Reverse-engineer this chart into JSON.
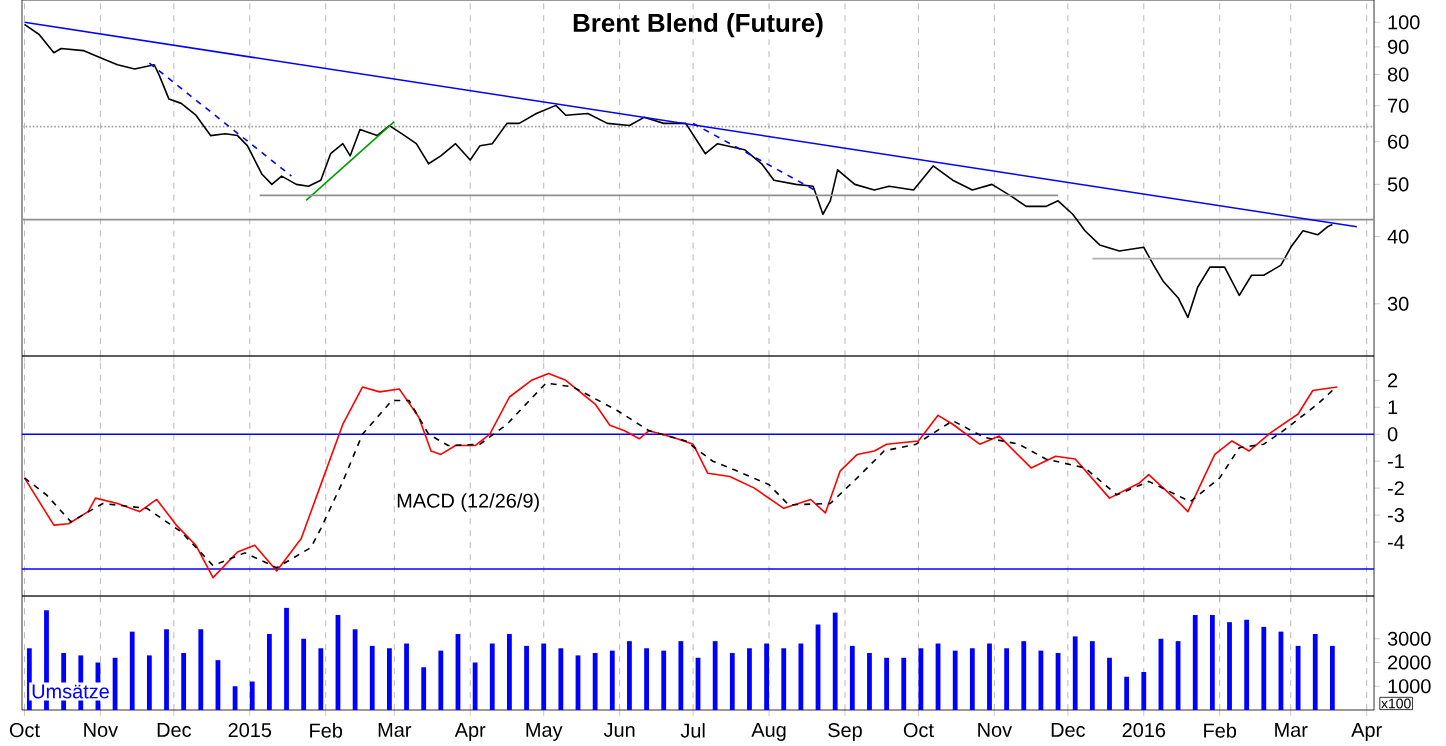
{
  "chart_data": [
    {
      "type": "line",
      "title": "Brent Blend (Future)",
      "log": "y",
      "grid": "x",
      "tick_labels": "y",
      "marker": "none",
      "xlim": [
        "2014-09-30",
        "2016-04-04"
      ],
      "xticks": [
        {
          "value": "2014-10-01",
          "label": null
        },
        {
          "value": "2014-11-01",
          "label": null
        },
        {
          "value": "2014-12-01",
          "label": null
        },
        {
          "value": "2015-01-01",
          "label": null
        },
        {
          "value": "2015-02-01",
          "label": null
        },
        {
          "value": "2015-03-01",
          "label": null
        },
        {
          "value": "2015-04-01",
          "label": null
        },
        {
          "value": "2015-05-01",
          "label": null
        },
        {
          "value": "2015-06-01",
          "label": null
        },
        {
          "value": "2015-07-01",
          "label": null
        },
        {
          "value": "2015-08-01",
          "label": null
        },
        {
          "value": "2015-09-01",
          "label": null
        },
        {
          "value": "2015-10-01",
          "label": null
        },
        {
          "value": "2015-11-01",
          "label": null
        },
        {
          "value": "2015-12-01",
          "label": null
        },
        {
          "value": "2016-01-01",
          "label": null
        },
        {
          "value": "2016-02-01",
          "label": null
        },
        {
          "value": "2016-03-01",
          "label": null
        },
        {
          "value": "2016-04-01",
          "label": null
        }
      ],
      "ylim": [
        24,
        110
      ],
      "yticks": [
        30,
        40,
        50,
        60,
        70,
        80,
        90,
        100
      ],
      "ref_lines": [
        {
          "axis": "y",
          "value": 64,
          "color": "#a0a0a0",
          "line_style": "dotted"
        },
        {
          "axis": "y",
          "value": 43,
          "color": "#909090",
          "line_style": "solid"
        }
      ],
      "series": [
        {
          "type": "line",
          "color": "#000000",
          "line_style": "solid",
          "x": [
            "2014-10-01",
            "2014-10-07",
            "2014-10-13",
            "2014-10-16",
            "2014-10-25",
            "2014-11-02",
            "2014-11-08",
            "2014-11-15",
            "2014-11-23",
            "2014-11-25",
            "2014-11-29",
            "2014-12-04",
            "2014-12-10",
            "2014-12-16",
            "2014-12-22",
            "2014-12-27",
            "2014-12-31",
            "2015-01-06",
            "2015-01-10",
            "2015-01-14",
            "2015-01-20",
            "2015-01-25",
            "2015-01-30",
            "2015-02-03",
            "2015-02-08",
            "2015-02-11",
            "2015-02-15",
            "2015-02-22",
            "2015-02-27",
            "2015-03-04",
            "2015-03-10",
            "2015-03-15",
            "2015-03-20",
            "2015-03-26",
            "2015-04-01",
            "2015-04-05",
            "2015-04-10",
            "2015-04-16",
            "2015-04-21",
            "2015-04-28",
            "2015-05-06",
            "2015-05-10",
            "2015-05-19",
            "2015-05-27",
            "2015-06-05",
            "2015-06-11",
            "2015-06-19",
            "2015-06-28",
            "2015-07-06",
            "2015-07-11",
            "2015-07-22",
            "2015-07-29",
            "2015-08-03",
            "2015-08-12",
            "2015-08-19",
            "2015-08-23",
            "2015-08-26",
            "2015-08-29",
            "2015-09-05",
            "2015-09-13",
            "2015-09-19",
            "2015-09-29",
            "2015-10-07",
            "2015-10-15",
            "2015-10-23",
            "2015-10-31",
            "2015-11-08",
            "2015-11-14",
            "2015-11-22",
            "2015-11-27",
            "2015-12-03",
            "2015-12-08",
            "2015-12-14",
            "2015-12-22",
            "2016-01-01",
            "2016-01-05",
            "2016-01-09",
            "2016-01-15",
            "2016-01-19",
            "2016-01-23",
            "2016-01-28",
            "2016-02-03",
            "2016-02-09",
            "2016-02-14",
            "2016-02-19",
            "2016-02-26",
            "2016-03-01",
            "2016-03-06",
            "2016-03-12",
            "2016-03-16",
            "2016-03-18"
          ],
          "values": [
            99.1,
            94.9,
            87.8,
            89.4,
            88.6,
            85.6,
            83.4,
            81.9,
            83.4,
            79.8,
            72.0,
            70.7,
            67.2,
            61.6,
            62.1,
            61.6,
            59.0,
            52.2,
            50.0,
            51.8,
            50.0,
            49.6,
            50.9,
            57.0,
            59.5,
            56.5,
            63.2,
            61.6,
            64.3,
            62.1,
            59.5,
            54.6,
            56.5,
            59.5,
            55.5,
            59.0,
            59.5,
            64.9,
            64.9,
            67.7,
            70.1,
            67.2,
            67.7,
            64.9,
            64.3,
            66.6,
            64.9,
            64.9,
            57.0,
            59.5,
            58.0,
            54.6,
            50.9,
            50.0,
            49.6,
            44.0,
            46.6,
            53.2,
            50.0,
            48.8,
            49.6,
            48.8,
            54.1,
            50.9,
            48.8,
            50.0,
            47.5,
            45.5,
            45.5,
            46.6,
            44.0,
            41.0,
            38.6,
            37.6,
            38.2,
            35.4,
            33.0,
            30.8,
            28.3,
            32.2,
            35.1,
            35.1,
            31.1,
            33.9,
            33.9,
            35.4,
            38.2,
            41.0,
            40.3,
            41.7,
            42.1
          ]
        },
        {
          "type": "line",
          "color": "#0000ff",
          "line_style": "solid",
          "x": [
            "2014-10-01",
            "2016-03-28"
          ],
          "values": [
            100,
            41.7
          ]
        },
        {
          "type": "line",
          "color": "#00a000",
          "line_style": "solid",
          "x": [
            "2015-01-24",
            "2015-03-01"
          ],
          "values": [
            46.7,
            65.4
          ]
        },
        {
          "type": "line",
          "color": "#0000ff",
          "line_style": "dashed",
          "x": [
            "2014-11-21",
            "2015-01-18"
          ],
          "values": [
            84,
            51.8
          ]
        },
        {
          "type": "line",
          "color": "#0000ff",
          "line_style": "dashed",
          "x": [
            "2015-07-01",
            "2015-08-20"
          ],
          "values": [
            64.9,
            48.7
          ]
        },
        {
          "type": "line",
          "color": "#909090",
          "line_style": "solid",
          "x": [
            "2015-01-05",
            "2015-11-27"
          ],
          "values": [
            47.7,
            47.7
          ]
        },
        {
          "type": "line",
          "color": "#b0b0b0",
          "line_style": "solid",
          "x": [
            "2015-12-11",
            "2016-02-29"
          ],
          "values": [
            36.4,
            36.4
          ]
        }
      ]
    },
    {
      "type": "line",
      "grid": "x",
      "tick_labels": "y",
      "marker": "none",
      "annotations": [
        "MACD (12/26/9)"
      ],
      "xlim": [
        "2014-09-30",
        "2016-04-04"
      ],
      "xticks": [
        {
          "value": "2014-10-01",
          "label": null
        },
        {
          "value": "2014-11-01",
          "label": null
        },
        {
          "value": "2014-12-01",
          "label": null
        },
        {
          "value": "2015-01-01",
          "label": null
        },
        {
          "value": "2015-02-01",
          "label": null
        },
        {
          "value": "2015-03-01",
          "label": null
        },
        {
          "value": "2015-04-01",
          "label": null
        },
        {
          "value": "2015-05-01",
          "label": null
        },
        {
          "value": "2015-06-01",
          "label": null
        },
        {
          "value": "2015-07-01",
          "label": null
        },
        {
          "value": "2015-08-01",
          "label": null
        },
        {
          "value": "2015-09-01",
          "label": null
        },
        {
          "value": "2015-10-01",
          "label": null
        },
        {
          "value": "2015-11-01",
          "label": null
        },
        {
          "value": "2015-12-01",
          "label": null
        },
        {
          "value": "2016-01-01",
          "label": null
        },
        {
          "value": "2016-02-01",
          "label": null
        },
        {
          "value": "2016-03-01",
          "label": null
        },
        {
          "value": "2016-04-01",
          "label": null
        }
      ],
      "ylim": [
        -6,
        2.9
      ],
      "yticks": [
        -4,
        -3,
        -2,
        -1,
        0,
        1,
        2
      ],
      "ref_lines": [
        {
          "axis": "y",
          "value": 0,
          "color": "#0000ff",
          "line_style": "solid"
        },
        {
          "axis": "y",
          "value": -5,
          "color": "#0000ff",
          "line_style": "solid"
        }
      ],
      "series": [
        {
          "type": "line",
          "color": "#ff0000",
          "line_style": "solid",
          "x": [
            "2014-10-01",
            "2014-10-13",
            "2014-10-19",
            "2014-10-27",
            "2014-10-30",
            "2014-11-08",
            "2014-11-17",
            "2014-11-24",
            "2014-12-02",
            "2014-12-10",
            "2014-12-17",
            "2014-12-27",
            "2015-01-03",
            "2015-01-12",
            "2015-01-22",
            "2015-01-30",
            "2015-02-08",
            "2015-02-16",
            "2015-02-23",
            "2015-03-03",
            "2015-03-11",
            "2015-03-16",
            "2015-03-20",
            "2015-03-26",
            "2015-04-03",
            "2015-04-09",
            "2015-04-17",
            "2015-04-26",
            "2015-05-03",
            "2015-05-10",
            "2015-05-22",
            "2015-05-28",
            "2015-06-03",
            "2015-06-09",
            "2015-06-13",
            "2015-06-23",
            "2015-07-01",
            "2015-07-07",
            "2015-07-16",
            "2015-07-26",
            "2015-08-07",
            "2015-08-18",
            "2015-08-24",
            "2015-08-30",
            "2015-09-06",
            "2015-09-13",
            "2015-09-18",
            "2015-10-01",
            "2015-10-09",
            "2015-10-15",
            "2015-10-26",
            "2015-11-03",
            "2015-11-16",
            "2015-11-26",
            "2015-12-04",
            "2015-12-18",
            "2015-12-30",
            "2016-01-03",
            "2016-01-15",
            "2016-01-19",
            "2016-01-30",
            "2016-02-06",
            "2016-02-13",
            "2016-02-22",
            "2016-03-04",
            "2016-03-10",
            "2016-03-20"
          ],
          "values": [
            -1.62,
            -3.37,
            -3.32,
            -2.87,
            -2.37,
            -2.57,
            -2.87,
            -2.42,
            -3.37,
            -4.12,
            -5.32,
            -4.37,
            -4.12,
            -5.07,
            -3.87,
            -1.87,
            0.37,
            1.75,
            1.57,
            1.68,
            0.63,
            -0.62,
            -0.75,
            -0.42,
            -0.42,
            0,
            1.38,
            2.0,
            2.25,
            2.0,
            1.12,
            0.33,
            0.13,
            -0.17,
            0.13,
            -0.12,
            -0.37,
            -1.45,
            -1.57,
            -2.0,
            -2.75,
            -2.42,
            -2.92,
            -1.37,
            -0.75,
            -0.62,
            -0.37,
            -0.25,
            0.7,
            0.37,
            -0.37,
            -0.07,
            -1.25,
            -0.82,
            -0.92,
            -2.37,
            -1.82,
            -1.5,
            -2.5,
            -2.87,
            -0.75,
            -0.25,
            -0.62,
            0.07,
            0.75,
            1.62,
            1.75
          ]
        },
        {
          "type": "line",
          "color": "#000000",
          "line_style": "dashed",
          "x": [
            "2014-10-01",
            "2014-10-10",
            "2014-10-20",
            "2014-11-02",
            "2014-11-20",
            "2014-12-04",
            "2014-12-17",
            "2014-12-30",
            "2015-01-12",
            "2015-01-26",
            "2015-01-30",
            "2015-02-08",
            "2015-02-16",
            "2015-02-28",
            "2015-03-07",
            "2015-03-15",
            "2015-03-23",
            "2015-04-05",
            "2015-04-16",
            "2015-05-02",
            "2015-05-13",
            "2015-05-31",
            "2015-06-13",
            "2015-06-28",
            "2015-07-09",
            "2015-07-16",
            "2015-08-01",
            "2015-08-09",
            "2015-08-26",
            "2015-09-06",
            "2015-09-17",
            "2015-09-30",
            "2015-10-15",
            "2015-10-28",
            "2015-11-11",
            "2015-11-22",
            "2015-12-08",
            "2015-12-21",
            "2016-01-03",
            "2016-01-20",
            "2016-02-01",
            "2016-02-09",
            "2016-02-19",
            "2016-02-27",
            "2016-03-12",
            "2016-03-18"
          ],
          "values": [
            -1.62,
            -2.25,
            -3.25,
            -2.57,
            -2.75,
            -3.62,
            -4.87,
            -4.4,
            -4.95,
            -4.2,
            -3.5,
            -1.75,
            0,
            1.25,
            1.25,
            0,
            -0.42,
            -0.37,
            0.37,
            1.9,
            1.75,
            0.88,
            0.13,
            -0.25,
            -1.0,
            -1.25,
            -1.87,
            -2.62,
            -2.57,
            -1.62,
            -0.62,
            -0.37,
            0.5,
            -0.12,
            -0.37,
            -0.92,
            -1.25,
            -2.25,
            -1.75,
            -2.5,
            -1.62,
            -0.5,
            -0.37,
            0.13,
            1.12,
            1.62
          ]
        }
      ]
    },
    {
      "type": "bar",
      "grid": "x",
      "color": "#0000ff",
      "annotations": [
        "Umsätze",
        "x100"
      ],
      "xlim": [
        "2014-09-30",
        "2016-04-04"
      ],
      "xticks": [
        {
          "value": "2014-10-01",
          "label": "Oct"
        },
        {
          "value": "2014-11-01",
          "label": "Nov"
        },
        {
          "value": "2014-12-01",
          "label": "Dec"
        },
        {
          "value": "2015-01-01",
          "label": "2015"
        },
        {
          "value": "2015-02-01",
          "label": "Feb"
        },
        {
          "value": "2015-03-01",
          "label": "Mar"
        },
        {
          "value": "2015-04-01",
          "label": "Apr"
        },
        {
          "value": "2015-05-01",
          "label": "May"
        },
        {
          "value": "2015-06-01",
          "label": "Jun"
        },
        {
          "value": "2015-07-01",
          "label": "Jul"
        },
        {
          "value": "2015-08-01",
          "label": "Aug"
        },
        {
          "value": "2015-09-01",
          "label": "Sep"
        },
        {
          "value": "2015-10-01",
          "label": "Oct"
        },
        {
          "value": "2015-11-01",
          "label": "Nov"
        },
        {
          "value": "2015-12-01",
          "label": "Dec"
        },
        {
          "value": "2016-01-01",
          "label": "2016"
        },
        {
          "value": "2016-02-01",
          "label": "Feb"
        },
        {
          "value": "2016-03-01",
          "label": "Mar"
        },
        {
          "value": "2016-04-01",
          "label": "Apr"
        }
      ],
      "ylim": [
        0,
        4800
      ],
      "yticks": [
        1000,
        2000,
        3000
      ],
      "x": [
        "2014-10-03",
        "2014-10-10",
        "2014-10-17",
        "2014-10-24",
        "2014-10-31",
        "2014-11-07",
        "2014-11-14",
        "2014-11-21",
        "2014-11-28",
        "2014-12-05",
        "2014-12-12",
        "2014-12-19",
        "2014-12-26",
        "2015-01-02",
        "2015-01-09",
        "2015-01-16",
        "2015-01-23",
        "2015-01-30",
        "2015-02-06",
        "2015-02-13",
        "2015-02-20",
        "2015-02-27",
        "2015-03-06",
        "2015-03-13",
        "2015-03-20",
        "2015-03-27",
        "2015-04-03",
        "2015-04-10",
        "2015-04-17",
        "2015-04-24",
        "2015-05-01",
        "2015-05-08",
        "2015-05-15",
        "2015-05-22",
        "2015-05-29",
        "2015-06-05",
        "2015-06-12",
        "2015-06-19",
        "2015-06-26",
        "2015-07-03",
        "2015-07-10",
        "2015-07-17",
        "2015-07-24",
        "2015-07-31",
        "2015-08-07",
        "2015-08-14",
        "2015-08-21",
        "2015-08-28",
        "2015-09-04",
        "2015-09-11",
        "2015-09-18",
        "2015-09-25",
        "2015-10-02",
        "2015-10-09",
        "2015-10-16",
        "2015-10-23",
        "2015-10-30",
        "2015-11-06",
        "2015-11-13",
        "2015-11-20",
        "2015-11-27",
        "2015-12-04",
        "2015-12-11",
        "2015-12-18",
        "2015-12-25",
        "2016-01-01",
        "2016-01-08",
        "2016-01-15",
        "2016-01-22",
        "2016-01-29",
        "2016-02-05",
        "2016-02-12",
        "2016-02-19",
        "2016-02-26",
        "2016-03-04",
        "2016-03-11",
        "2016-03-18"
      ],
      "values": [
        2600,
        4200,
        2400,
        2300,
        2000,
        2200,
        3300,
        2300,
        3400,
        2400,
        3400,
        2100,
        1000,
        1200,
        3200,
        4300,
        3000,
        2600,
        4000,
        3400,
        2700,
        2600,
        2800,
        1800,
        2500,
        3200,
        2000,
        2800,
        3200,
        2700,
        2800,
        2600,
        2300,
        2400,
        2500,
        2900,
        2600,
        2500,
        2900,
        2200,
        2900,
        2400,
        2600,
        2800,
        2600,
        2800,
        3600,
        4100,
        2700,
        2400,
        2200,
        2200,
        2600,
        2800,
        2500,
        2600,
        2800,
        2600,
        2900,
        2500,
        2400,
        3100,
        2900,
        2200,
        1400,
        1600,
        3000,
        2900,
        4000,
        4000,
        3700,
        3800,
        3500,
        3300,
        2700,
        3200,
        2700
      ]
    }
  ]
}
